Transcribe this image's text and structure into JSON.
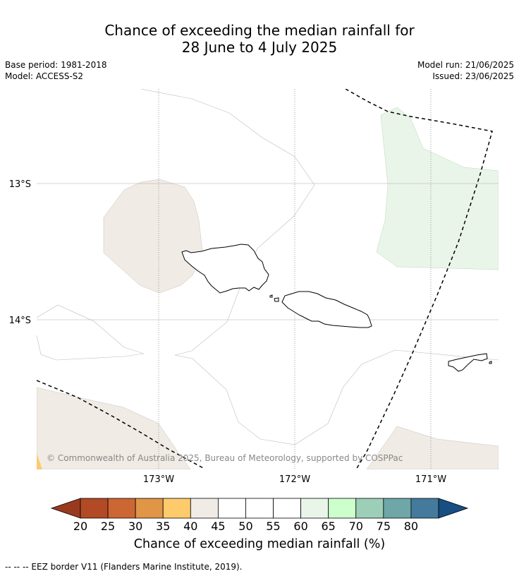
{
  "title": {
    "line1": "Chance of exceeding the median rainfall for",
    "line2": "28 June to 4 July 2025"
  },
  "meta": {
    "base_period": "Base period: 1981-2018",
    "model": "Model: ACCESS-S2",
    "model_run": "Model run: 21/06/2025",
    "issued": "Issued: 23/06/2025"
  },
  "map": {
    "lat_labels": [
      "13°S",
      "14°S"
    ],
    "lon_labels": [
      "173°W",
      "172°W",
      "171°W"
    ],
    "copyright": "© Commonwealth of Australia 2025, Bureau of Meteorology, supported by COSPPac"
  },
  "colorbar": {
    "ticks": [
      "20",
      "25",
      "30",
      "35",
      "40",
      "45",
      "50",
      "55",
      "60",
      "65",
      "70",
      "75",
      "80"
    ],
    "colors": [
      "#b24a26",
      "#cc6633",
      "#e09547",
      "#fdcb6b",
      "#f0ebe5",
      "#ffffff",
      "#ffffff",
      "#ffffff",
      "#eaf5ea",
      "#ccffcc",
      "#9dceb8",
      "#6fa6a8",
      "#447a9c"
    ],
    "under_color": "#993a1f",
    "over_color": "#174e84",
    "label": "Chance of exceeding median rainfall (%)"
  },
  "legend": {
    "eez": "--  --  -- EEZ border V11 (Flanders Marine Institute, 2019)."
  }
}
